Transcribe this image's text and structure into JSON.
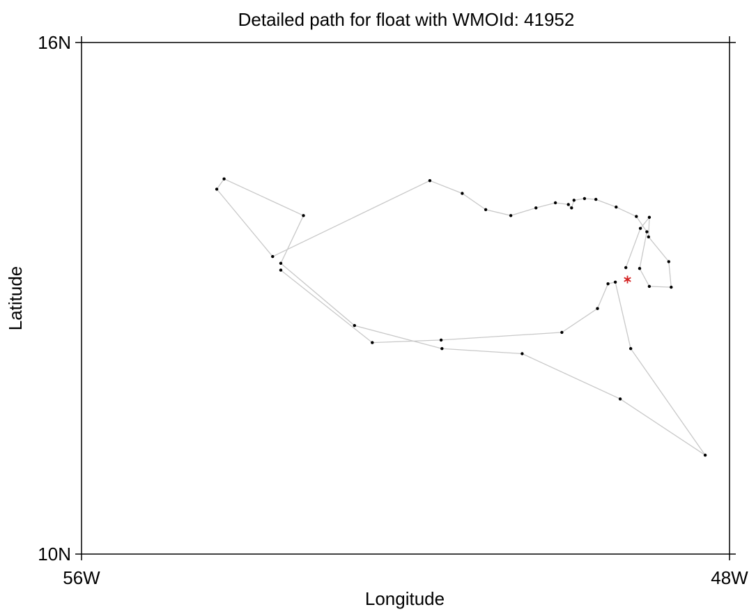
{
  "chart_data": {
    "type": "scatter",
    "title": "Detailed path for float with WMOId: 41952",
    "xlabel": "Longitude",
    "ylabel": "Latitude",
    "xlim": [
      -56,
      -48
    ],
    "ylim": [
      10,
      16
    ],
    "x_ticks": [
      {
        "value": -56,
        "label": "56W"
      },
      {
        "value": -48,
        "label": "48W"
      }
    ],
    "y_ticks": [
      {
        "value": 10,
        "label": "10N"
      },
      {
        "value": 16,
        "label": "16N"
      }
    ],
    "grid": false,
    "colors": {
      "path": "#c8c8c8",
      "point": "#000000",
      "current": "#d42020"
    },
    "path": [
      {
        "lon": -49.28,
        "lat": 13.36
      },
      {
        "lon": -49.1,
        "lat": 13.82
      },
      {
        "lon": -48.99,
        "lat": 13.95
      },
      {
        "lon": -49.0,
        "lat": 13.72
      },
      {
        "lon": -48.75,
        "lat": 13.43
      },
      {
        "lon": -48.72,
        "lat": 13.13
      },
      {
        "lon": -48.99,
        "lat": 13.14
      },
      {
        "lon": -49.11,
        "lat": 13.35
      },
      {
        "lon": -49.02,
        "lat": 13.78
      },
      {
        "lon": -49.15,
        "lat": 13.96
      },
      {
        "lon": -49.4,
        "lat": 14.07
      },
      {
        "lon": -49.65,
        "lat": 14.16
      },
      {
        "lon": -49.79,
        "lat": 14.17
      },
      {
        "lon": -49.92,
        "lat": 14.15
      },
      {
        "lon": -49.95,
        "lat": 14.06
      },
      {
        "lon": -49.99,
        "lat": 14.1
      },
      {
        "lon": -50.15,
        "lat": 14.12
      },
      {
        "lon": -50.39,
        "lat": 14.06
      },
      {
        "lon": -50.7,
        "lat": 13.97
      },
      {
        "lon": -51.01,
        "lat": 14.04
      },
      {
        "lon": -51.3,
        "lat": 14.23
      },
      {
        "lon": -51.7,
        "lat": 14.38
      },
      {
        "lon": -53.64,
        "lat": 13.49
      },
      {
        "lon": -54.33,
        "lat": 14.28
      },
      {
        "lon": -54.24,
        "lat": 14.4
      },
      {
        "lon": -53.26,
        "lat": 13.97
      },
      {
        "lon": -53.54,
        "lat": 13.41
      },
      {
        "lon": -52.63,
        "lat": 12.68
      },
      {
        "lon": -51.55,
        "lat": 12.41
      },
      {
        "lon": -50.56,
        "lat": 12.35
      },
      {
        "lon": -49.35,
        "lat": 11.82
      },
      {
        "lon": -48.3,
        "lat": 11.16
      },
      {
        "lon": -49.22,
        "lat": 12.41
      },
      {
        "lon": -49.41,
        "lat": 13.19
      },
      {
        "lon": -49.5,
        "lat": 13.17
      },
      {
        "lon": -49.63,
        "lat": 12.88
      },
      {
        "lon": -50.07,
        "lat": 12.6
      },
      {
        "lon": -51.56,
        "lat": 12.51
      },
      {
        "lon": -52.41,
        "lat": 12.48
      },
      {
        "lon": -53.54,
        "lat": 13.33
      }
    ],
    "current_position": {
      "lon": -49.26,
      "lat": 13.22,
      "marker": "asterisk"
    }
  }
}
